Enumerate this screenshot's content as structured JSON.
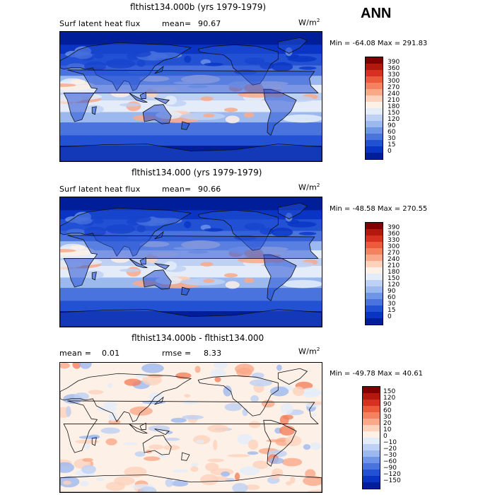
{
  "season": "ANN",
  "panels": [
    {
      "title": "flthist134.000b (yrs 1979-1979)",
      "variable": "Surf latent heat flux",
      "stat_label": "mean=",
      "stat_value": "90.67",
      "units": "W/m",
      "units_exp": "2",
      "minmax": "Min = -64.08 Max = 291.83",
      "colorbar": {
        "labels": [
          "390",
          "360",
          "330",
          "300",
          "270",
          "240",
          "210",
          "180",
          "150",
          "120",
          "90",
          "60",
          "30",
          "15",
          "0"
        ],
        "colors": [
          "#7f0000",
          "#b2180e",
          "#d73020",
          "#ec5a3c",
          "#f4815f",
          "#f9a98a",
          "#fcd2bd",
          "#fdf0e6",
          "#e4ecf9",
          "#bed1f4",
          "#9cb9ef",
          "#6f95e6",
          "#4a73de",
          "#2251d4",
          "#0a35c4",
          "#001e9a"
        ]
      }
    },
    {
      "title": "flthist134.000 (yrs 1979-1979)",
      "variable": "Surf latent heat flux",
      "stat_label": "mean=",
      "stat_value": "90.66",
      "units": "W/m",
      "units_exp": "2",
      "minmax": "Min = -48.58 Max = 270.55",
      "colorbar": {
        "labels": [
          "390",
          "360",
          "330",
          "300",
          "270",
          "240",
          "210",
          "180",
          "150",
          "120",
          "90",
          "60",
          "30",
          "15",
          "0"
        ],
        "colors": [
          "#7f0000",
          "#b2180e",
          "#d73020",
          "#ec5a3c",
          "#f4815f",
          "#f9a98a",
          "#fcd2bd",
          "#fdf0e6",
          "#e4ecf9",
          "#bed1f4",
          "#9cb9ef",
          "#6f95e6",
          "#4a73de",
          "#2251d4",
          "#0a35c4",
          "#001e9a"
        ]
      }
    },
    {
      "title": "flthist134.000b - flthist134.000",
      "mean_label": "mean =",
      "mean_value": "0.01",
      "rmse_label": "rmse =",
      "rmse_value": "8.33",
      "units": "W/m",
      "units_exp": "2",
      "minmax": "Min = -49.78 Max = 40.61",
      "colorbar": {
        "labels": [
          "150",
          "120",
          "90",
          "60",
          "30",
          "20",
          "10",
          "0",
          "−10",
          "−20",
          "−30",
          "−60",
          "−90",
          "−120",
          "−150"
        ],
        "colors": [
          "#7f0000",
          "#b2180e",
          "#d73020",
          "#ec5a3c",
          "#f4815f",
          "#f9a98a",
          "#fcd2bd",
          "#fdf0e6",
          "#e4ecf9",
          "#bed1f4",
          "#9cb9ef",
          "#6f95e6",
          "#4a73de",
          "#2251d4",
          "#0a35c4",
          "#001e9a"
        ]
      }
    }
  ]
}
